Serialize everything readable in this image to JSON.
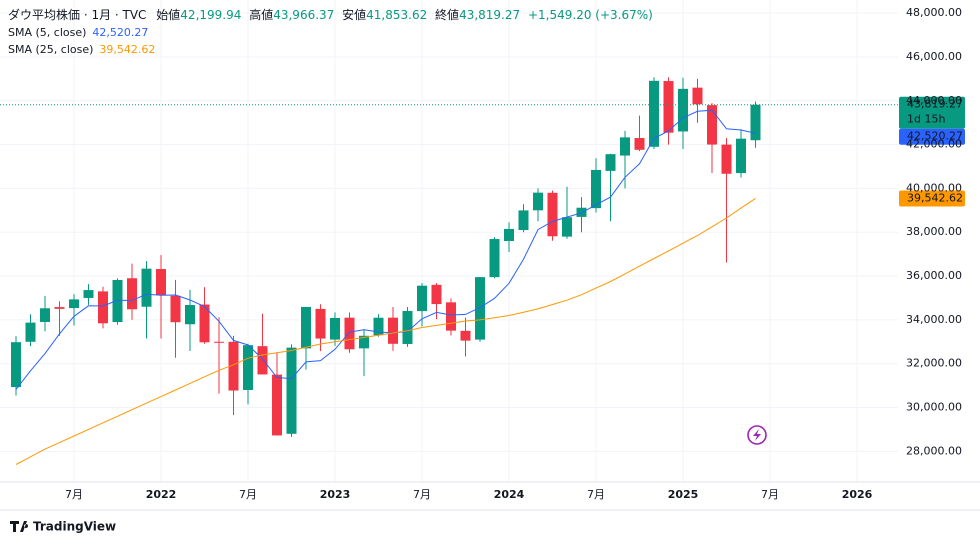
{
  "chart_data": {
    "type": "candlestick",
    "title": "ダウ平均株価 · 1月 · TVC",
    "ohlc_legend": [
      {
        "label": "始値",
        "value": "42,199.94"
      },
      {
        "label": "高値",
        "value": "43,966.37"
      },
      {
        "label": "安値",
        "value": "41,853.62"
      },
      {
        "label": "終値",
        "value": "43,819.27"
      }
    ],
    "change": "+1,549.20 (+3.67%)",
    "countdown": "1d 15h",
    "up_color": "#089981",
    "down_color": "#f23645",
    "x": [
      "2021-03",
      "2021-04",
      "2021-05",
      "2021-06",
      "2021-07",
      "2021-08",
      "2021-09",
      "2021-10",
      "2021-11",
      "2021-12",
      "2022-01",
      "2022-02",
      "2022-03",
      "2022-04",
      "2022-05",
      "2022-06",
      "2022-07",
      "2022-08",
      "2022-09",
      "2022-10",
      "2022-11",
      "2022-12",
      "2023-01",
      "2023-02",
      "2023-03",
      "2023-04",
      "2023-05",
      "2023-06",
      "2023-07",
      "2023-08",
      "2023-09",
      "2023-10",
      "2023-11",
      "2023-12",
      "2024-01",
      "2024-02",
      "2024-03",
      "2024-04",
      "2024-05",
      "2024-06",
      "2024-07",
      "2024-08",
      "2024-09",
      "2024-10",
      "2024-11",
      "2024-12",
      "2025-01",
      "2025-02",
      "2025-03",
      "2025-04",
      "2025-05",
      "2025-06"
    ],
    "open": [
      30932,
      33000,
      33904,
      34584,
      34540,
      35000,
      35300,
      33900,
      35900,
      34600,
      36321,
      35100,
      33800,
      34700,
      33000,
      33000,
      30800,
      32800,
      31500,
      28800,
      32700,
      34500,
      33100,
      34100,
      32700,
      33300,
      34100,
      32900,
      34400,
      35600,
      34800,
      33500,
      33100,
      35950,
      37600,
      38100,
      39000,
      39800,
      37800,
      38700,
      39100,
      40800,
      41500,
      42300,
      41900,
      44900,
      42600,
      44600,
      43800,
      42000,
      40700,
      42199.94
    ],
    "high": [
      33259,
      34257,
      35091,
      34849,
      35171,
      35631,
      35510,
      35893,
      36566,
      36680,
      36953,
      35824,
      35372,
      35493,
      34117,
      33272,
      32910,
      34281,
      32504,
      32884,
      34590,
      34712,
      34342,
      34334,
      33572,
      34257,
      34589,
      34589,
      35679,
      35679,
      34979,
      34100,
      35954,
      37778,
      38451,
      39283,
      40003,
      39900,
      40077,
      39600,
      41376,
      41585,
      42628,
      43325,
      45074,
      45073,
      45054,
      45000,
      43900,
      42300,
      42700,
      43966.37
    ],
    "low": [
      30547,
      32800,
      33474,
      33272,
      33741,
      34685,
      33613,
      33785,
      34006,
      33152,
      33150,
      32272,
      32578,
      32913,
      30636,
      29653,
      30144,
      31510,
      28715,
      28660,
      31727,
      32573,
      32812,
      32500,
      31430,
      33235,
      32586,
      32768,
      33705,
      34030,
      33286,
      32327,
      33000,
      35900,
      37100,
      38000,
      38500,
      37612,
      37700,
      38000,
      38900,
      38500,
      40000,
      41700,
      41800,
      42000,
      41800,
      43000,
      40700,
      36612,
      40500,
      41853.62
    ],
    "close": [
      32982,
      33875,
      34529,
      34503,
      34935,
      35361,
      33844,
      35820,
      34484,
      36338,
      35132,
      33893,
      34678,
      32977,
      32990,
      30775,
      32845,
      31510,
      28726,
      32733,
      34590,
      33147,
      34086,
      32657,
      33274,
      34098,
      32908,
      34408,
      35560,
      34722,
      33508,
      33053,
      35951,
      37690,
      38150,
      38996,
      39807,
      37816,
      38686,
      39119,
      40843,
      41563,
      42330,
      41763,
      44911,
      42544,
      44545,
      43841,
      42002,
      40669,
      42270,
      43819.27
    ],
    "close_label": "43,819.27",
    "series": [
      {
        "name": "SMA (5, close)",
        "color": "#2962ff",
        "last_label": "42,520.27",
        "values": [
          30828,
          31676,
          32460,
          33364,
          34165,
          34641,
          34634,
          34893,
          34889,
          35169,
          35124,
          35133,
          34905,
          34604,
          33934,
          33063,
          32853,
          32219,
          31369,
          31318,
          32081,
          32141,
          32656,
          33443,
          33551,
          33452,
          33405,
          33469,
          34050,
          34339,
          34221,
          34250,
          34559,
          34985,
          35670,
          36768,
          38119,
          38492,
          38691,
          38885,
          39254,
          39605,
          40508,
          41124,
          42282,
          42622,
          43219,
          43521,
          43569,
          42720,
          42665,
          42520.27
        ]
      },
      {
        "name": "SMA (25, close)",
        "color": "#ff9800",
        "last_label": "39,542.62",
        "values": [
          27400,
          27750,
          28100,
          28400,
          28700,
          29000,
          29300,
          29600,
          29900,
          30200,
          30500,
          30800,
          31100,
          31400,
          31700,
          31950,
          32250,
          32400,
          32500,
          32600,
          32750,
          32900,
          33000,
          33100,
          33200,
          33300,
          33400,
          33500,
          33650,
          33750,
          33850,
          33950,
          34000,
          34100,
          34200,
          34350,
          34500,
          34700,
          34900,
          35150,
          35450,
          35750,
          36100,
          36450,
          36800,
          37150,
          37500,
          37850,
          38250,
          38650,
          39100,
          39542.62
        ]
      }
    ],
    "ylim": [
      26600,
      48600
    ],
    "yticks": [
      {
        "value": 28000,
        "label": "28,000.00"
      },
      {
        "value": 30000,
        "label": "30,000.00"
      },
      {
        "value": 32000,
        "label": "32,000.00"
      },
      {
        "value": 34000,
        "label": "34,000.00"
      },
      {
        "value": 36000,
        "label": "36,000.00"
      },
      {
        "value": 38000,
        "label": "38,000.00"
      },
      {
        "value": 40000,
        "label": "40,000.00"
      },
      {
        "value": 42000,
        "label": "42,000.00"
      },
      {
        "value": 44000,
        "label": "44,000.00"
      },
      {
        "value": 46000,
        "label": "46,000.00"
      },
      {
        "value": 48000,
        "label": "48,000.00"
      }
    ],
    "xticks": [
      {
        "value": "2021-07",
        "label": "7月"
      },
      {
        "value": "2022-01",
        "label": "2022"
      },
      {
        "value": "2022-07",
        "label": "7月"
      },
      {
        "value": "2023-01",
        "label": "2023"
      },
      {
        "value": "2023-07",
        "label": "7月"
      },
      {
        "value": "2024-01",
        "label": "2024"
      },
      {
        "value": "2024-07",
        "label": "7月"
      },
      {
        "value": "2025-01",
        "label": "2025"
      },
      {
        "value": "2025-07",
        "label": "7月"
      },
      {
        "value": "2026-01",
        "label": "2026"
      }
    ],
    "grid": true,
    "brand": "TradingView"
  }
}
